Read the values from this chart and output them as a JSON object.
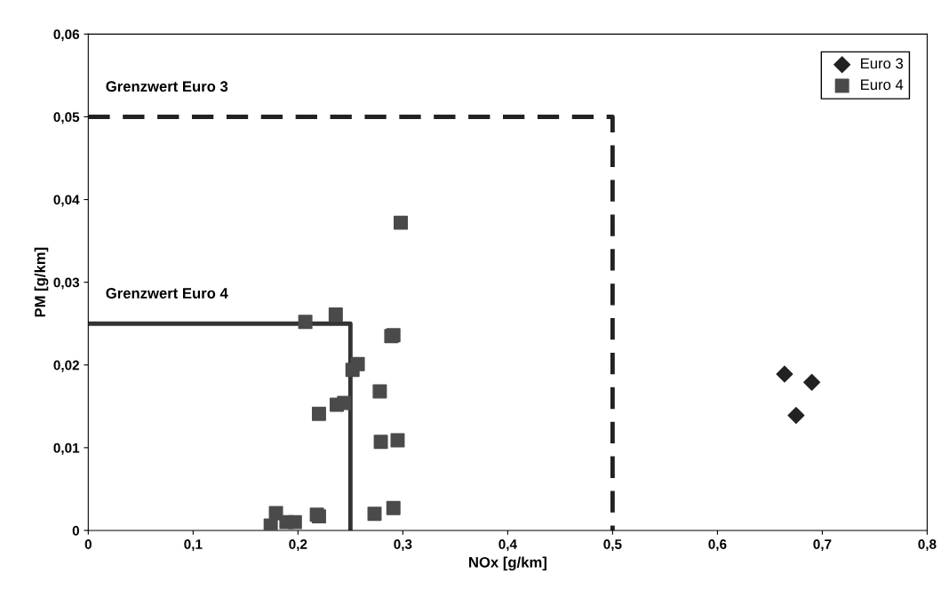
{
  "chart_data": {
    "type": "scatter",
    "xlabel": "NOx [g/km]",
    "ylabel": "PM [g/km]",
    "xlim": [
      0,
      0.8
    ],
    "ylim": [
      0,
      0.06
    ],
    "xticks": [
      {
        "value": 0,
        "label": "0"
      },
      {
        "value": 0.1,
        "label": "0,1"
      },
      {
        "value": 0.2,
        "label": "0,2"
      },
      {
        "value": 0.3,
        "label": "0,3"
      },
      {
        "value": 0.4,
        "label": "0,4"
      },
      {
        "value": 0.5,
        "label": "0,5"
      },
      {
        "value": 0.6,
        "label": "0,6"
      },
      {
        "value": 0.7,
        "label": "0,7"
      },
      {
        "value": 0.8,
        "label": "0,8"
      }
    ],
    "yticks": [
      {
        "value": 0,
        "label": "0"
      },
      {
        "value": 0.01,
        "label": "0,01"
      },
      {
        "value": 0.02,
        "label": "0,02"
      },
      {
        "value": 0.03,
        "label": "0,03"
      },
      {
        "value": 0.04,
        "label": "0,04"
      },
      {
        "value": 0.05,
        "label": "0,05"
      },
      {
        "value": 0.06,
        "label": "0,06"
      }
    ],
    "grid": false,
    "legend": "top right",
    "series": [
      {
        "name": "Euro 3",
        "marker": "diamond",
        "color": "#222222",
        "x": [
          0.664,
          0.69,
          0.675
        ],
        "values": [
          0.0189,
          0.0179,
          0.0139
        ]
      },
      {
        "name": "Euro 4",
        "marker": "square",
        "color": "#4a4a4a",
        "x": [
          0.207,
          0.236,
          0.298,
          0.289,
          0.291,
          0.257,
          0.252,
          0.278,
          0.22,
          0.237,
          0.244,
          0.279,
          0.295,
          0.174,
          0.179,
          0.189,
          0.197,
          0.218,
          0.22,
          0.273,
          0.291
        ],
        "values": [
          0.0252,
          0.0261,
          0.0372,
          0.0235,
          0.0236,
          0.0201,
          0.0194,
          0.0168,
          0.0141,
          0.0152,
          0.0154,
          0.0107,
          0.0109,
          0.0006,
          0.0021,
          0.001,
          0.001,
          0.0019,
          0.0017,
          0.002,
          0.0027
        ]
      },
      {
        "type": "line",
        "line_style": "dashed",
        "color": "#222222",
        "x": [
          0,
          0.5,
          0.5
        ],
        "values": [
          0.05,
          0.05,
          0
        ]
      },
      {
        "type": "line",
        "line_style": "solid",
        "color": "#333333",
        "x": [
          0,
          0.25,
          0.25
        ],
        "values": [
          0.025,
          0.025,
          0
        ]
      }
    ],
    "annotations": [
      "Grenzwert Euro 3",
      "Grenzwert Euro 4"
    ]
  }
}
